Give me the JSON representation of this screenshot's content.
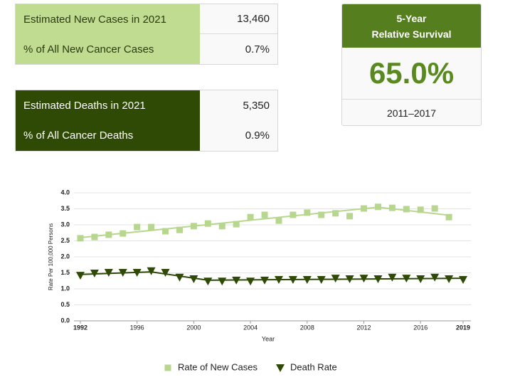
{
  "stats": {
    "new_cases": {
      "rows": [
        [
          "Estimated New Cases in 2021",
          "13,460"
        ],
        [
          "% of All New Cancer Cases",
          "0.7%"
        ]
      ]
    },
    "deaths": {
      "rows": [
        [
          "Estimated Deaths in 2021",
          "5,350"
        ],
        [
          "% of All Cancer Deaths",
          "0.9%"
        ]
      ]
    },
    "survival": {
      "title": [
        "5-Year",
        "Relative Survival"
      ],
      "value": "65.0%",
      "period": "2011–2017"
    }
  },
  "chart_data": {
    "type": "line",
    "y_label": "Rate Per 100,000 Persons",
    "x_label": "Year",
    "x": [
      1992,
      1993,
      1994,
      1995,
      1996,
      1997,
      1998,
      1999,
      2000,
      2001,
      2002,
      2003,
      2004,
      2005,
      2006,
      2007,
      2008,
      2009,
      2010,
      2011,
      2012,
      2013,
      2014,
      2015,
      2016,
      2017,
      2018,
      2019
    ],
    "xlim": [
      1991.55,
      2019.55
    ],
    "xticks": [
      1992,
      1996,
      2000,
      2004,
      2008,
      2012,
      2016,
      2019
    ],
    "ylim": [
      0,
      4
    ],
    "yticks": [
      {
        "value": 0,
        "label": "0.0"
      },
      0.5,
      {
        "value": 1,
        "label": "1.0"
      },
      1.5,
      {
        "value": 2,
        "label": "2.0"
      },
      2.5,
      {
        "value": 3,
        "label": "3.0"
      },
      3.5,
      {
        "value": 4,
        "label": "4.0"
      }
    ],
    "grid": true,
    "legend": "bottom",
    "series": [
      {
        "name": "Rate of New Cases",
        "color": "#b7d68e",
        "marker": "square",
        "values": [
          2.58,
          2.62,
          2.69,
          2.73,
          2.93,
          2.93,
          2.8,
          2.84,
          2.96,
          3.04,
          2.96,
          3.02,
          3.24,
          3.31,
          3.13,
          3.31,
          3.38,
          3.31,
          3.36,
          3.27,
          3.51,
          3.56,
          3.53,
          3.49,
          3.47,
          3.51,
          3.24,
          null
        ],
        "trend": {
          "x": [
            1992,
            2013,
            2018
          ],
          "values": [
            2.6,
            3.55,
            3.3
          ]
        }
      },
      {
        "name": "Death Rate",
        "color": "#2e4a06",
        "marker": "triangle",
        "values": [
          1.42,
          1.49,
          1.51,
          1.51,
          1.51,
          1.56,
          1.51,
          1.36,
          1.31,
          1.24,
          1.24,
          1.27,
          1.24,
          1.27,
          1.29,
          1.29,
          1.29,
          1.29,
          1.33,
          1.31,
          1.33,
          1.31,
          1.36,
          1.33,
          1.31,
          1.36,
          1.31,
          1.29
        ],
        "trend": {
          "x": [
            1992,
            1997,
            2001,
            2019
          ],
          "values": [
            1.45,
            1.53,
            1.27,
            1.33
          ]
        }
      }
    ]
  }
}
